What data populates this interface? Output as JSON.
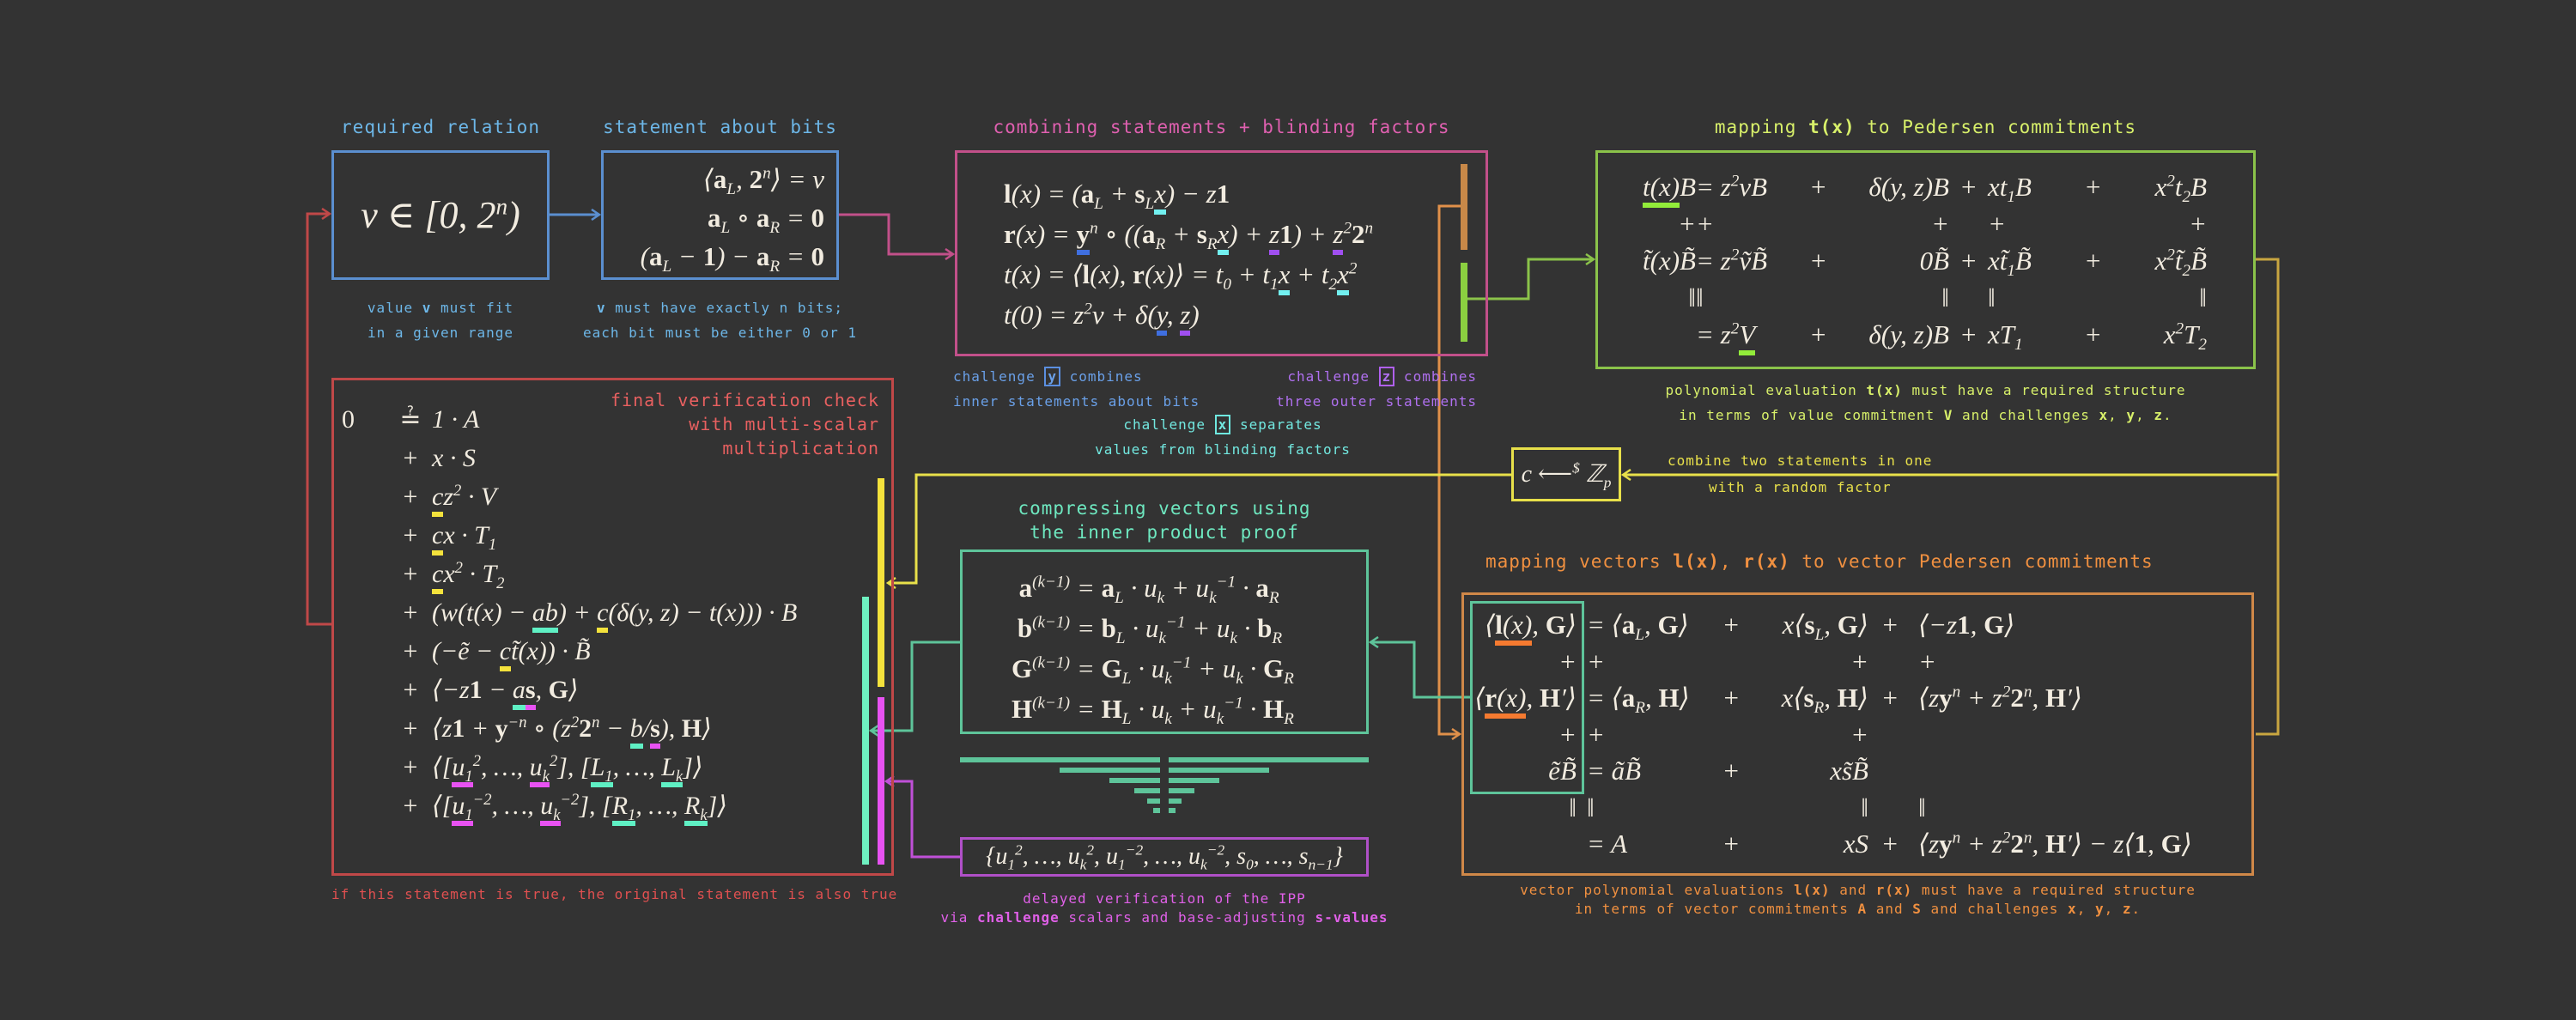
{
  "colors": {
    "background": "#333333",
    "blue": "#5b8fd0",
    "pink": "#c2508a",
    "green": "#8bc34a",
    "red": "#c04848",
    "yellow": "#e8e04a",
    "teal": "#5ec49a",
    "purple": "#b050c8",
    "orange": "#d08848"
  },
  "required_relation": {
    "title": "required relation",
    "formula": "v ∈ [0, 2^n)",
    "caption": [
      "value *{v} must fit",
      "in a given range"
    ]
  },
  "statement_bits": {
    "title": "statement about bits",
    "rows": [
      "⟨*{a}_L, *{2}^n⟩ = v",
      "*{a}_L ∘ *{a}_R = *{0}",
      "(*{a}_L − *{1}) − *{a}_R = *{0}"
    ],
    "caption": [
      "*{v} must have exactly n bits;",
      "each bit must be either 0 or 1"
    ]
  },
  "combining": {
    "title": "combining statements + blinding factors",
    "rows": [
      "*{l}(x) = (*{a}_L + *{s}_L~c{x}) − z*{1}",
      "*{r}(x) = ~b{*{y}}^n ∘ ((*{a}_R + *{s}_R~c{x}) + ~p{z}*{1}) + ~p{z}^2*{2}^n",
      "t(x) = ⟨*{l}(x), *{r}(x)⟩ = t_0 + t_1~c{x} + t_2~c{x}^2",
      "t(0) = z^2v + δ(~b{y}, ~p{z})"
    ],
    "caption_y": [
      "challenge #b{y} combines",
      "inner statements about bits"
    ],
    "caption_z": [
      "challenge #p{z} combines",
      "three outer statements"
    ],
    "caption_x": [
      "challenge #c{x} separates",
      "values from blinding factors"
    ]
  },
  "pedersen": {
    "title": "mapping *{t(x)} to Pedersen commitments",
    "rows": [
      [
        "~g{t(x)}B",
        "= z^2vB",
        "+",
        "δ(y, z)B",
        "+",
        "xt_1B",
        "+",
        "x^2t_2B"
      ],
      [
        "+",
        "+",
        "",
        "+",
        "",
        "+",
        "",
        "+"
      ],
      [
        "t̃(x)B̃",
        "= z^2ṽB̃",
        "+",
        "0B̃",
        "+",
        "xt̃_1B̃",
        "+",
        "x^2t̃_2B̃"
      ],
      [
        "‖",
        "‖",
        "",
        "‖",
        "",
        "‖",
        "",
        "‖"
      ],
      [
        "",
        "= z^2~g{V}",
        "+",
        "δ(y, z)B",
        "+",
        "xT_1",
        "+",
        "x^2T_2"
      ]
    ],
    "caption": [
      "polynomial evaluation *{t(x)} must have a required structure",
      "in terms of value commitment *{V} and challenges *{x}, *{y}, *{z}."
    ]
  },
  "random_factor": {
    "formula": "c ⟵^{$} ℤ_p",
    "caption": [
      "combine two statements in one",
      "with a random factor"
    ]
  },
  "verification": {
    "title": [
      "final verification check",
      "with multi-scalar",
      "multiplication"
    ],
    "rows": [
      [
        "0",
        "≟",
        "1 · A"
      ],
      [
        "",
        "+",
        "x · S"
      ],
      [
        "",
        "+",
        "~y{c}z^2 · V"
      ],
      [
        "",
        "+",
        "~y{c}x · T_1"
      ],
      [
        "",
        "+",
        "~y{c}x^2 · T_2"
      ],
      [
        "",
        "+",
        "(w(t(x) − ~t{a}~t{b}) + ~y{c}(δ(y, z) − t(x))) · B"
      ],
      [
        "",
        "+",
        "(−ẽ − ~y{c}t̃(x)) · B̃"
      ],
      [
        "",
        "+",
        "⟨−z*{1} − ~t{a}~m{*{s}}, *{G}⟩"
      ],
      [
        "",
        "+",
        "⟨z*{1} + *{y}^{−n} ∘ (z^2*{2}^n − ~t{b}/~m{*{s}}), *{H}⟩"
      ],
      [
        "",
        "+",
        "⟨[~m{u_1}^2, …, ~m{u_k}^2], [~t{L_1}, …, ~t{L_k}]⟩"
      ],
      [
        "",
        "+",
        "⟨[~m{u_1}^{−2}, …, ~m{u_k}^{−2}], [~t{R_1}, …, ~t{R_k}]⟩"
      ]
    ],
    "caption": "if this statement is true, the original statement is also true"
  },
  "ipp": {
    "title": [
      "compressing vectors using",
      "the inner product proof"
    ],
    "rows": [
      [
        "*{a}^{(k−1)}",
        "= *{a}_L · u_k + u_k^{−1} · *{a}_R"
      ],
      [
        "*{b}^{(k−1)}",
        "= *{b}_L · u_k^{−1} + u_k · *{b}_R"
      ],
      [
        "*{G}^{(k−1)}",
        "= *{G}_L · u_k^{−1} + u_k · *{G}_R"
      ],
      [
        "*{H}^{(k−1)}",
        "= *{H}_L · u_k + u_k^{−1} · *{H}_R"
      ]
    ],
    "delayed_formula": "{u_1^2, …, u_k^2, u_1^{−2}, …, u_k^{−2}, s_0, …, s_{n−1}}",
    "caption": [
      "delayed verification of the IPP",
      "via *{challenge} scalars and base-adjusting *{s-values}"
    ]
  },
  "vector_pedersen": {
    "title": "mapping vectors *{l(x)}, *{r(x)} to vector Pedersen commitments",
    "rows": [
      [
        "⟨~o{*{l}(x)}, *{G}⟩",
        "= ⟨*{a}_L, *{G}⟩",
        "+",
        "x⟨*{s}_L, *{G}⟩",
        "+",
        "⟨−z*{1}, *{G}⟩"
      ],
      [
        "+",
        "+",
        "",
        "+",
        "",
        "+"
      ],
      [
        "⟨~o{*{r}(x)}, *{H}′⟩",
        "= ⟨*{a}_R, *{H}⟩",
        "+",
        "x⟨*{s}_R, *{H}⟩",
        "+",
        "⟨z*{y}^n + z^2*{2}^n, *{H}′⟩"
      ],
      [
        "+",
        "+",
        "",
        "+",
        "",
        ""
      ],
      [
        "ẽB̃",
        "= ãB̃",
        "+",
        "xs̃B̃",
        "",
        ""
      ],
      [
        "‖",
        "‖",
        "",
        "‖",
        "",
        "‖"
      ],
      [
        "",
        "= A",
        "+",
        "xS",
        "+",
        "⟨z*{y}^n + z^2*{2}^n, *{H}′⟩ − z⟨*{1}, *{G}⟩"
      ]
    ],
    "caption": [
      "vector polynomial evaluations *{l(x)} and *{r(x)} must have a required structure",
      "in terms of vector commitments *{A} and *{S} and challenges *{x}, *{y}, *{z}."
    ]
  }
}
